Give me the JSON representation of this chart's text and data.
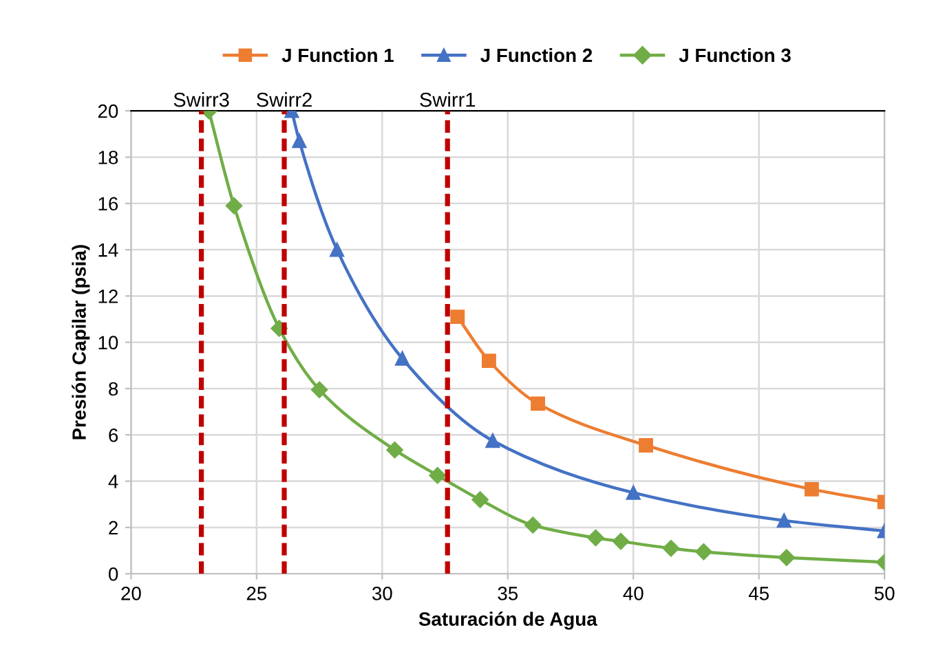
{
  "chart_data": {
    "type": "line",
    "xlabel": "Saturación de Agua",
    "ylabel": "Presión Capilar (psia)",
    "xlim": [
      20,
      50
    ],
    "xticks": [
      20,
      25,
      30,
      35,
      40,
      45,
      50
    ],
    "ylim": [
      0,
      20
    ],
    "yticks": [
      0,
      2,
      4,
      6,
      8,
      10,
      12,
      14,
      16,
      18,
      20
    ],
    "grid": true,
    "legend": "top",
    "series": [
      {
        "name": "J Function 1",
        "color": "#ed7d31",
        "marker": "square",
        "line_style": "solid",
        "x": [
          33.0,
          34.25,
          36.2,
          40.5,
          47.1,
          50
        ],
        "values": [
          11.1,
          9.2,
          7.35,
          5.55,
          3.65,
          3.1
        ]
      },
      {
        "name": "J Function 2",
        "color": "#4472c4",
        "marker": "triangle",
        "line_style": "solid",
        "x": [
          26.4,
          26.7,
          28.2,
          30.8,
          34.4,
          40.0,
          46.0,
          50
        ],
        "values": [
          20,
          18.7,
          14.0,
          9.3,
          5.75,
          3.5,
          2.3,
          1.85
        ]
      },
      {
        "name": "J Function 3",
        "color": "#70ad47",
        "marker": "diamond",
        "line_style": "solid",
        "x": [
          23.1,
          24.1,
          25.9,
          27.5,
          30.5,
          32.2,
          33.9,
          36.0,
          38.5,
          39.5,
          41.5,
          42.8,
          46.1,
          50
        ],
        "values": [
          20,
          15.9,
          10.6,
          7.95,
          5.35,
          4.25,
          3.2,
          2.1,
          1.55,
          1.4,
          1.1,
          0.95,
          0.7,
          0.5
        ]
      }
    ],
    "ref_lines": [
      {
        "axis": "x",
        "value": 22.8,
        "label": "Swirr3",
        "color": "#c00000",
        "line_style": "dashed"
      },
      {
        "axis": "x",
        "value": 26.1,
        "label": "Swirr2",
        "color": "#c00000",
        "line_style": "dashed"
      },
      {
        "axis": "x",
        "value": 32.6,
        "label": "Swirr1",
        "color": "#c00000",
        "line_style": "dashed"
      }
    ]
  }
}
